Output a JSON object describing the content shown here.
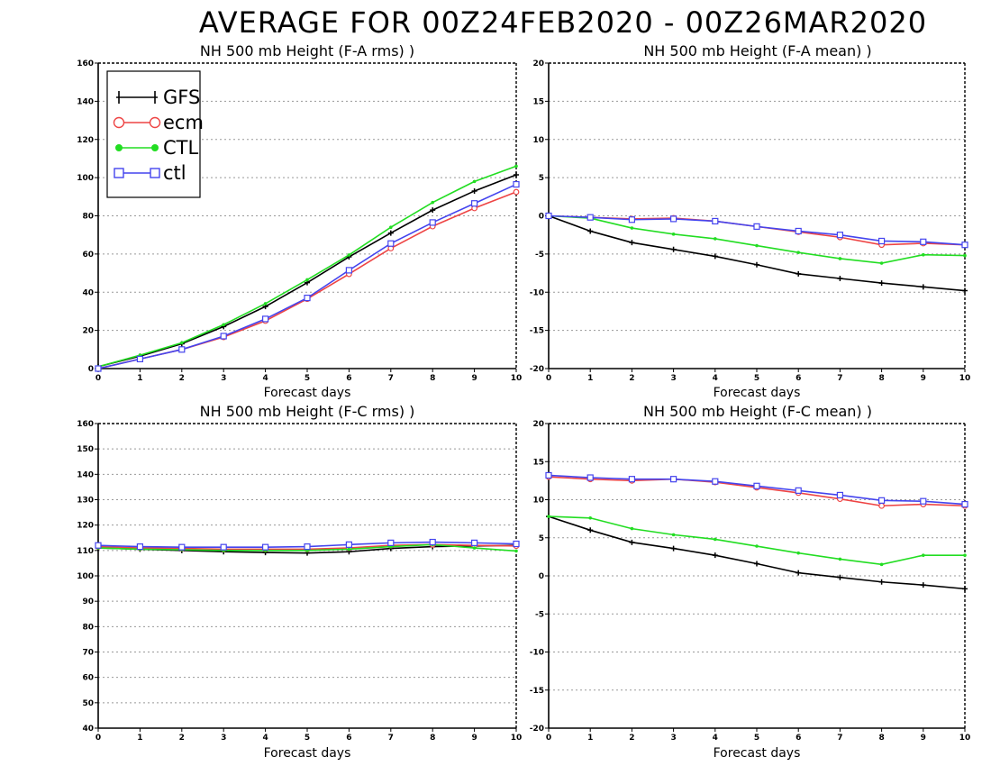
{
  "title": "AVERAGE FOR 00Z24FEB2020 - 00Z26MAR2020",
  "legend": [
    {
      "name": "GFS",
      "color": "#000000",
      "marker": "plus"
    },
    {
      "name": "ecm",
      "color": "#ee4444",
      "marker": "circle"
    },
    {
      "name": "CTL",
      "color": "#22dd22",
      "marker": "dot"
    },
    {
      "name": "ctl",
      "color": "#4444ee",
      "marker": "square"
    }
  ],
  "chart_data": [
    {
      "type": "line",
      "title": "NH 500 mb Height (F-A rms) )",
      "xlabel": "Forecast days",
      "ylabel": "",
      "xlim": [
        0,
        10
      ],
      "ylim": [
        0,
        160
      ],
      "yticks": [
        0,
        20,
        40,
        60,
        80,
        100,
        120,
        140,
        160
      ],
      "xticks": [
        0,
        1,
        2,
        3,
        4,
        5,
        6,
        7,
        8,
        9,
        10
      ],
      "grid": true,
      "legend": "top-left",
      "x": [
        0,
        1,
        2,
        3,
        4,
        5,
        6,
        7,
        8,
        9,
        10
      ],
      "series": [
        {
          "name": "GFS",
          "values": [
            1,
            6.5,
            13,
            22,
            32.5,
            45,
            58.5,
            71,
            83,
            93,
            101.5
          ]
        },
        {
          "name": "ecm",
          "values": [
            0,
            5,
            10,
            16.5,
            25,
            36.5,
            49.5,
            63,
            74.5,
            84,
            92.5
          ]
        },
        {
          "name": "CTL",
          "values": [
            1,
            7,
            13.5,
            23,
            34,
            46.5,
            59.5,
            74,
            87,
            98,
            106
          ]
        },
        {
          "name": "ctl",
          "values": [
            0,
            5,
            10,
            17,
            26,
            37,
            51.5,
            65.5,
            76.5,
            86.5,
            96.5
          ]
        }
      ]
    },
    {
      "type": "line",
      "title": "NH 500 mb Height (F-A mean) )",
      "xlabel": "Forecast days",
      "ylabel": "",
      "xlim": [
        0,
        10
      ],
      "ylim": [
        -20,
        20
      ],
      "yticks": [
        -20,
        -15,
        -10,
        -5,
        0,
        5,
        10,
        15,
        20
      ],
      "xticks": [
        0,
        1,
        2,
        3,
        4,
        5,
        6,
        7,
        8,
        9,
        10
      ],
      "grid": true,
      "x": [
        0,
        1,
        2,
        3,
        4,
        5,
        6,
        7,
        8,
        9,
        10
      ],
      "series": [
        {
          "name": "GFS",
          "values": [
            0,
            -2,
            -3.5,
            -4.4,
            -5.3,
            -6.4,
            -7.6,
            -8.2,
            -8.8,
            -9.3,
            -9.8
          ]
        },
        {
          "name": "ecm",
          "values": [
            0,
            -0.2,
            -0.4,
            -0.3,
            -0.7,
            -1.4,
            -2.1,
            -2.8,
            -3.8,
            -3.6,
            -3.8
          ]
        },
        {
          "name": "CTL",
          "values": [
            0,
            -0.3,
            -1.6,
            -2.4,
            -3.0,
            -3.9,
            -4.8,
            -5.6,
            -6.2,
            -5.1,
            -5.2
          ]
        },
        {
          "name": "ctl",
          "values": [
            0,
            -0.2,
            -0.5,
            -0.4,
            -0.7,
            -1.4,
            -2.0,
            -2.5,
            -3.3,
            -3.4,
            -3.8
          ]
        }
      ]
    },
    {
      "type": "line",
      "title": "NH 500 mb Height (F-C rms) )",
      "xlabel": "Forecast days",
      "ylabel": "",
      "xlim": [
        0,
        10
      ],
      "ylim": [
        40,
        160
      ],
      "yticks": [
        40,
        50,
        60,
        70,
        80,
        90,
        100,
        110,
        120,
        130,
        140,
        150,
        160
      ],
      "xticks": [
        0,
        1,
        2,
        3,
        4,
        5,
        6,
        7,
        8,
        9,
        10
      ],
      "grid": true,
      "x": [
        0,
        1,
        2,
        3,
        4,
        5,
        6,
        7,
        8,
        9,
        10
      ],
      "series": [
        {
          "name": "GFS",
          "values": [
            111,
            110.5,
            110,
            109.5,
            109.2,
            109,
            109.5,
            110.8,
            111.5,
            111.8,
            112
          ]
        },
        {
          "name": "ecm",
          "values": [
            111.5,
            111,
            110.8,
            110.5,
            110.5,
            110.5,
            111,
            112,
            112.3,
            112,
            111.8
          ]
        },
        {
          "name": "CTL",
          "values": [
            111,
            110.5,
            110.3,
            110,
            110,
            110,
            110.5,
            111.5,
            112.3,
            111,
            109.8
          ]
        },
        {
          "name": "ctl",
          "values": [
            112,
            111.5,
            111.3,
            111.3,
            111.3,
            111.5,
            112.3,
            113,
            113.3,
            113,
            112.6
          ]
        }
      ]
    },
    {
      "type": "line",
      "title": "NH 500 mb Height (F-C mean) )",
      "xlabel": "Forecast days",
      "ylabel": "",
      "xlim": [
        0,
        10
      ],
      "ylim": [
        -20,
        20
      ],
      "yticks": [
        -20,
        -15,
        -10,
        -5,
        0,
        5,
        10,
        15,
        20
      ],
      "xticks": [
        0,
        1,
        2,
        3,
        4,
        5,
        6,
        7,
        8,
        9,
        10
      ],
      "grid": true,
      "x": [
        0,
        1,
        2,
        3,
        4,
        5,
        6,
        7,
        8,
        9,
        10
      ],
      "series": [
        {
          "name": "GFS",
          "values": [
            7.8,
            6.0,
            4.4,
            3.6,
            2.7,
            1.6,
            0.4,
            -0.2,
            -0.8,
            -1.2,
            -1.7
          ]
        },
        {
          "name": "ecm",
          "values": [
            13.0,
            12.7,
            12.5,
            12.7,
            12.3,
            11.6,
            10.9,
            10.1,
            9.2,
            9.4,
            9.2
          ]
        },
        {
          "name": "CTL",
          "values": [
            7.8,
            7.6,
            6.2,
            5.4,
            4.8,
            3.9,
            3.0,
            2.2,
            1.5,
            2.7,
            2.7
          ]
        },
        {
          "name": "ctl",
          "values": [
            13.2,
            12.9,
            12.7,
            12.7,
            12.4,
            11.8,
            11.2,
            10.6,
            9.9,
            9.8,
            9.4
          ]
        }
      ]
    }
  ]
}
